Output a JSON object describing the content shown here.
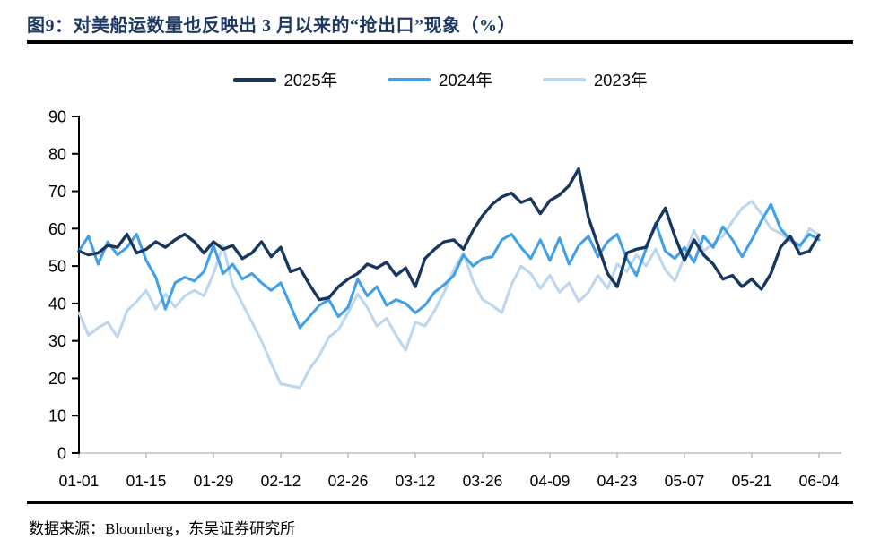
{
  "figure": {
    "title": "图9：对美船运数量也反映出 3 月以来的“抢出口”现象（%）",
    "source_note": "数据来源：Bloomberg，东吴证券研究所"
  },
  "colors": {
    "title_navy": "#1E3A63",
    "rule_black": "#000000",
    "axis_black": "#000000",
    "baseline_gray": "#BFBFBF",
    "series_2025": "#17375E",
    "series_2024": "#41A0E8",
    "series_2023": "#BDD7EE"
  },
  "chart_data": {
    "type": "line",
    "title": "",
    "xlabel": "",
    "ylabel": "",
    "ylim": [
      0,
      90
    ],
    "y_ticks": [
      0,
      10,
      20,
      30,
      40,
      50,
      60,
      70,
      80,
      90
    ],
    "x_tick_labels": [
      "01-01",
      "01-15",
      "01-29",
      "02-12",
      "02-26",
      "03-12",
      "03-26",
      "04-09",
      "04-23",
      "05-07",
      "05-21",
      "06-04"
    ],
    "x_tick_days": [
      0,
      14,
      28,
      42,
      56,
      70,
      84,
      98,
      112,
      126,
      140,
      154
    ],
    "start_date": "01-01",
    "step_days": 2,
    "grid": false,
    "legend_position": "top-center",
    "series": [
      {
        "name": "2025年",
        "color": "#17375E",
        "width": 3.4,
        "values": [
          54,
          53,
          53.5,
          55.5,
          55,
          58.5,
          53.5,
          54.5,
          56.5,
          55,
          57,
          58.5,
          56.5,
          53.5,
          56.5,
          54.5,
          55.5,
          52,
          53.5,
          56.5,
          52.5,
          55,
          48.5,
          49.4,
          45,
          41,
          41.5,
          44.5,
          46.5,
          48,
          50.5,
          49.5,
          51,
          47.5,
          49.5,
          44.5,
          52,
          54.5,
          56.5,
          57,
          54.5,
          59.5,
          63.5,
          66.5,
          68.5,
          69.5,
          67,
          68,
          64,
          67.5,
          69,
          71.5,
          76,
          63,
          55.5,
          48,
          44.5,
          53.5,
          54.5,
          55,
          61,
          65.5,
          58,
          51.5,
          57,
          53,
          50.5,
          46.5,
          47.5,
          44.5,
          46.5,
          43.8,
          48,
          55,
          58,
          53.2,
          54,
          58.3
        ]
      },
      {
        "name": "2024年",
        "color": "#41A0E8",
        "width": 3.1,
        "values": [
          54,
          58,
          50.5,
          56.5,
          53,
          55,
          58.5,
          51.5,
          47,
          38.5,
          45.5,
          47,
          46,
          48.5,
          55.5,
          48,
          50.5,
          46.5,
          48,
          45.5,
          43.5,
          45.5,
          39.5,
          33.5,
          36.5,
          39.5,
          41,
          36.5,
          39,
          46.5,
          42,
          44.5,
          39.5,
          41,
          40,
          37.5,
          39.5,
          43,
          45,
          47.5,
          53,
          50,
          52,
          52.5,
          57,
          58.5,
          55,
          52,
          57,
          51.5,
          57.5,
          50.5,
          55.5,
          58,
          52.5,
          56.5,
          58.5,
          52,
          47.5,
          54.5,
          61.5,
          54,
          52,
          55,
          51,
          58,
          55,
          60.5,
          57,
          52.5,
          57,
          62,
          66.5,
          60,
          57,
          55.5,
          58.5,
          57
        ]
      },
      {
        "name": "2023年",
        "color": "#BDD7EE",
        "width": 3.1,
        "values": [
          37.5,
          31.5,
          33.5,
          35,
          31,
          38,
          40.5,
          43.5,
          38.5,
          42.5,
          39,
          42,
          43.5,
          42,
          48,
          55.5,
          45,
          40,
          35,
          30,
          24,
          18.5,
          18,
          17.5,
          22.5,
          26,
          31,
          33,
          37.5,
          42.5,
          39,
          34,
          36,
          31.5,
          27.5,
          35,
          34,
          38,
          43,
          49,
          53.5,
          46,
          41,
          39.5,
          37.5,
          45,
          50,
          48,
          44,
          47.5,
          43,
          45.5,
          40.5,
          43,
          47.5,
          44,
          50.5,
          48.5,
          53,
          50,
          54.5,
          49,
          46,
          52.5,
          59.5,
          54,
          56,
          58,
          62,
          65.5,
          67.3,
          64,
          60,
          58.7,
          57,
          54.7,
          60,
          58.3
        ]
      }
    ]
  }
}
